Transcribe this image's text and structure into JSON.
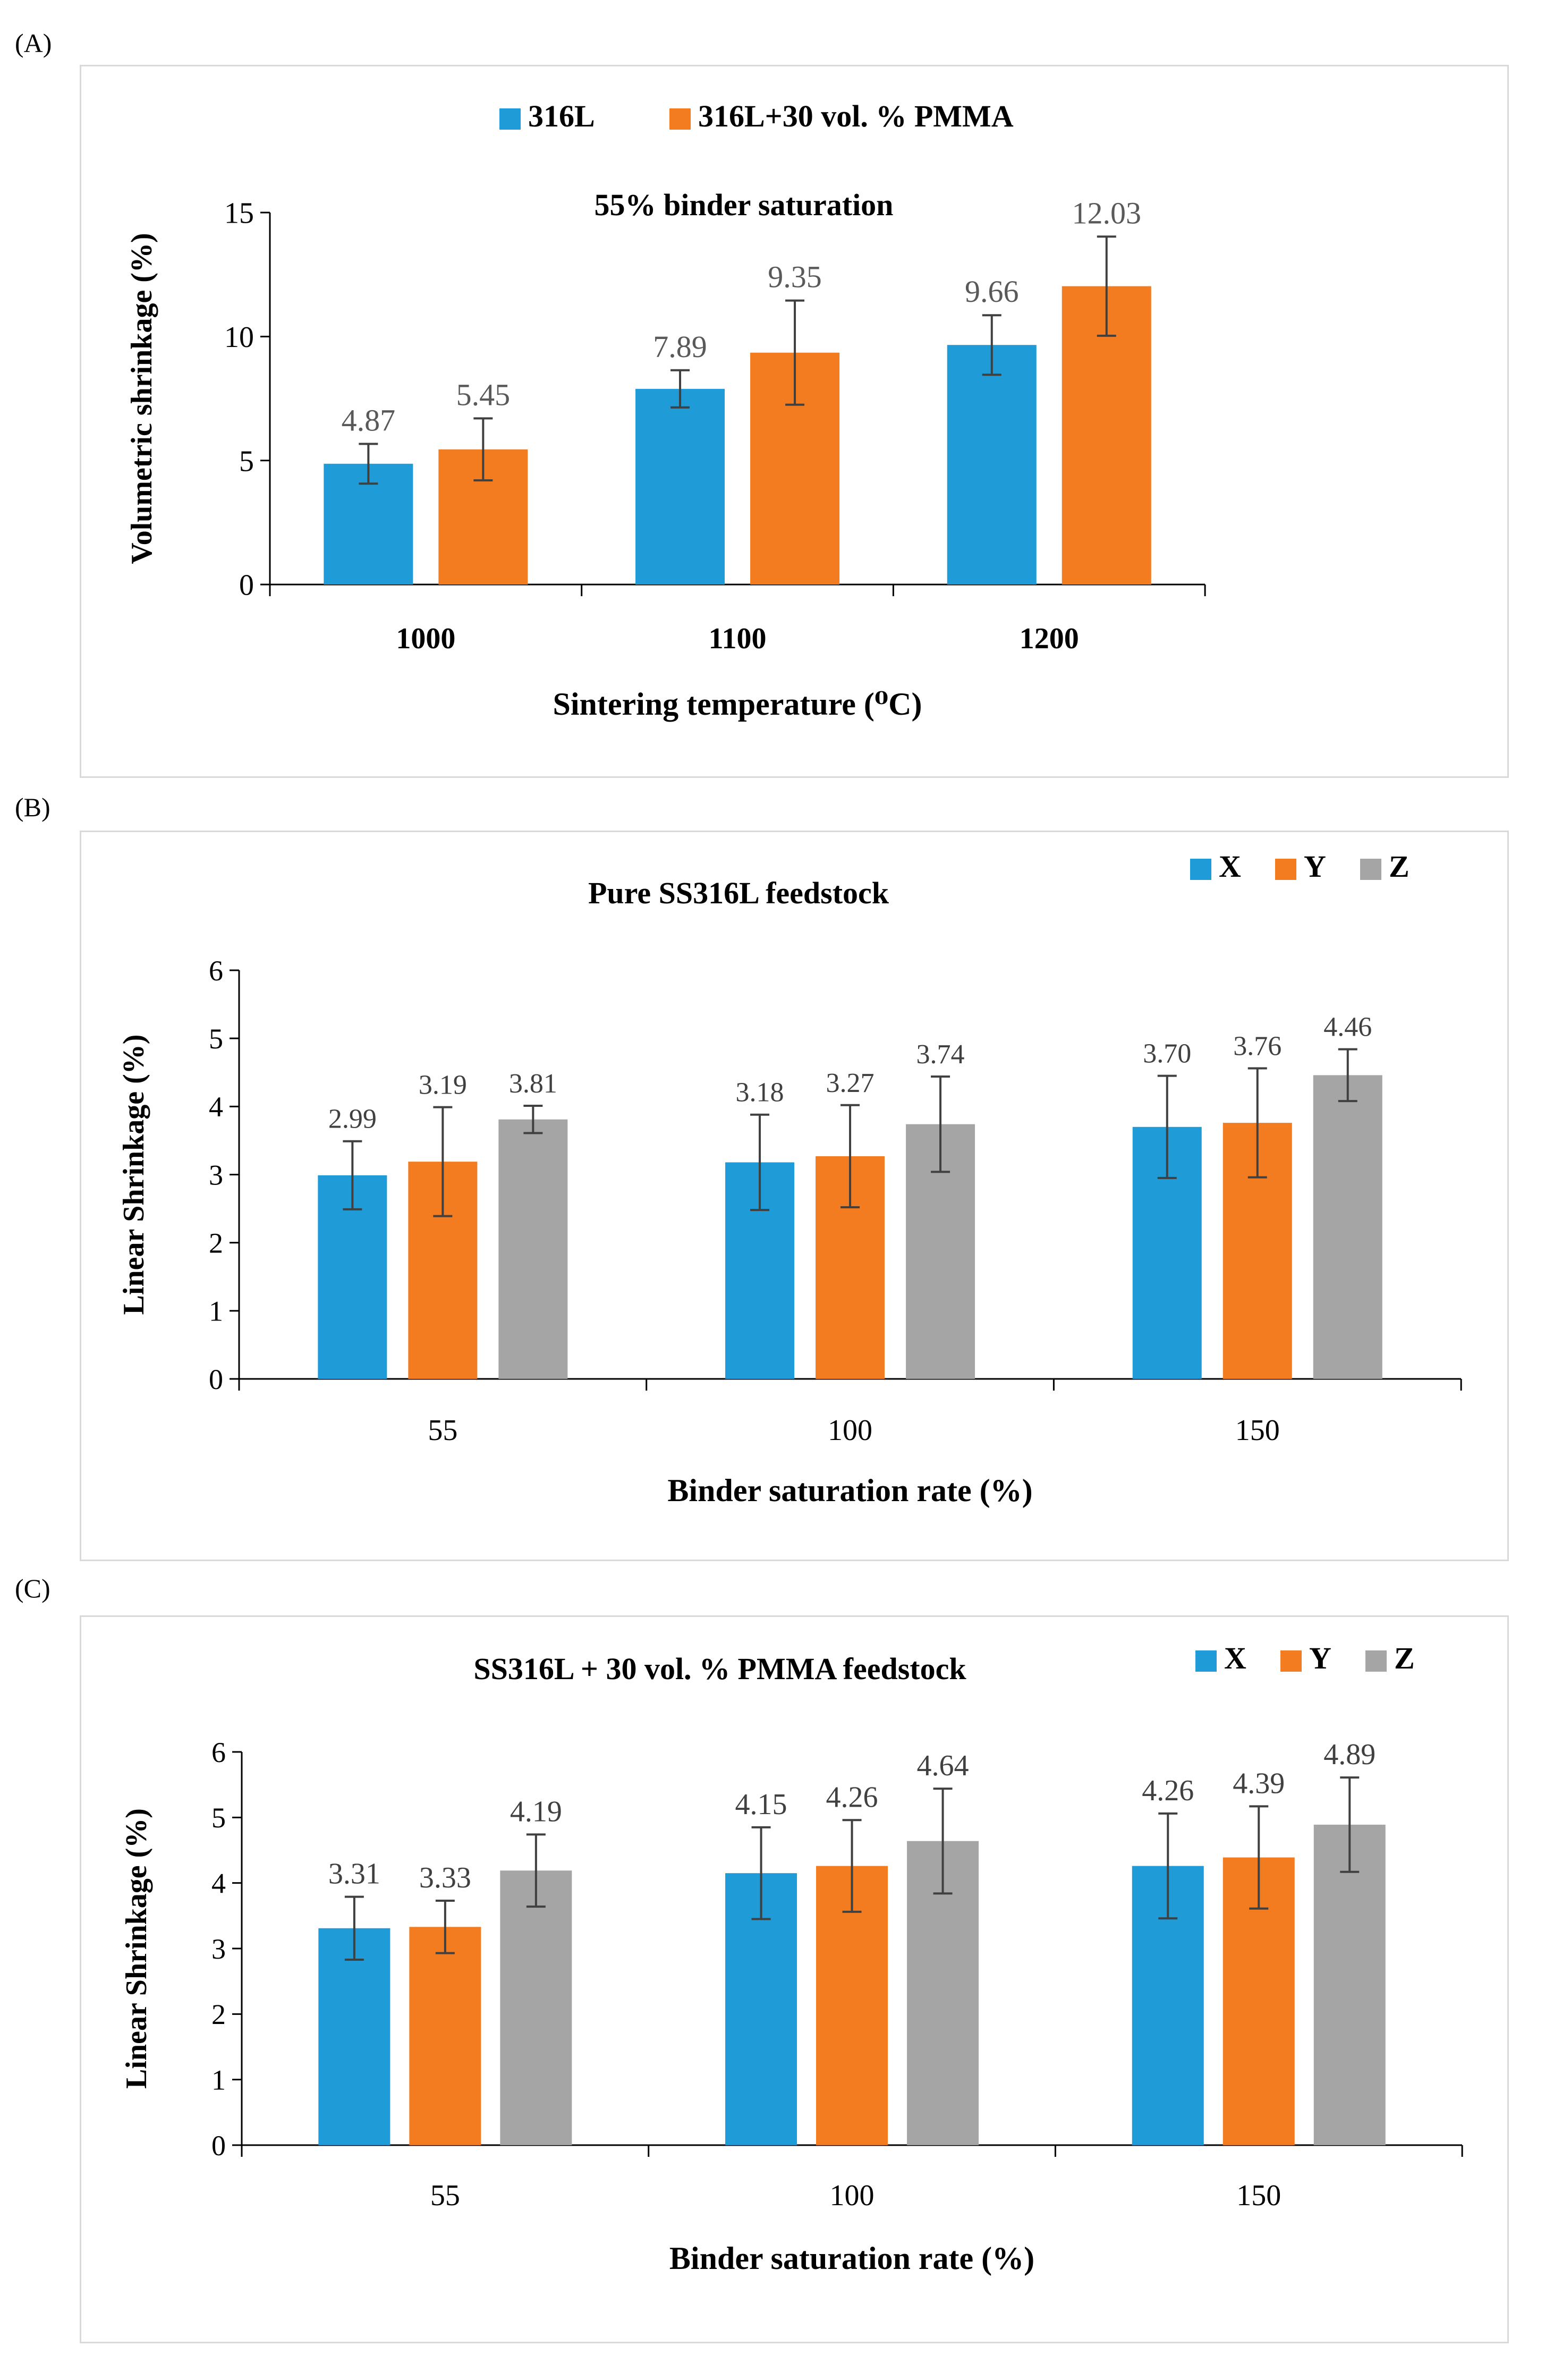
{
  "figure": {
    "panels": [
      {
        "label": "(A)",
        "chart_index": 0
      },
      {
        "label": "(B)",
        "chart_index": 1
      },
      {
        "label": "(C)",
        "chart_index": 2
      }
    ]
  },
  "chart_data": [
    {
      "type": "bar",
      "title": "55% binder saturation",
      "xlabel": "Sintering temperature (⁰C)",
      "ylabel": "Volumetric shrinkage (%)",
      "categories": [
        "1000",
        "1100",
        "1200"
      ],
      "ylim": [
        0,
        15
      ],
      "yticks": [
        0,
        5,
        10,
        15
      ],
      "legend_position": "top-center",
      "series": [
        {
          "name": "316L",
          "color": "#1f9bd7",
          "values": [
            4.87,
            7.89,
            9.66
          ],
          "errors": [
            0.8,
            0.75,
            1.2
          ],
          "labels": [
            "4.87",
            "7.89",
            "9.66"
          ]
        },
        {
          "name": "316L+30 vol. % PMMA",
          "color": "#f47c20",
          "values": [
            5.45,
            9.35,
            12.03
          ],
          "errors": [
            1.25,
            2.1,
            2.0
          ],
          "labels": [
            "5.45",
            "9.35",
            "12.03"
          ]
        }
      ]
    },
    {
      "type": "bar",
      "title": "Pure SS316L feedstock",
      "xlabel": "Binder saturation rate (%)",
      "ylabel": "Linear Shrinkage (%)",
      "categories": [
        "55",
        "100",
        "150"
      ],
      "ylim": [
        0,
        6
      ],
      "yticks": [
        0,
        1,
        2,
        3,
        4,
        5,
        6
      ],
      "legend_position": "top-right",
      "series": [
        {
          "name": "X",
          "color": "#1f9bd7",
          "values": [
            2.99,
            3.18,
            3.7
          ],
          "errors": [
            0.5,
            0.7,
            0.75
          ],
          "labels": [
            "2.99",
            "3.18",
            "3.70"
          ]
        },
        {
          "name": "Y",
          "color": "#f47c20",
          "values": [
            3.19,
            3.27,
            3.76
          ],
          "errors": [
            0.8,
            0.75,
            0.8
          ],
          "labels": [
            "3.19",
            "3.27",
            "3.76"
          ]
        },
        {
          "name": "Z",
          "color": "#a5a5a5",
          "values": [
            3.81,
            3.74,
            4.46
          ],
          "errors": [
            0.2,
            0.7,
            0.38
          ],
          "labels": [
            "3.81",
            "3.74",
            "4.46"
          ]
        }
      ]
    },
    {
      "type": "bar",
      "title": "SS316L + 30 vol. % PMMA feedstock",
      "xlabel": "Binder saturation rate (%)",
      "ylabel": "Linear Shrinkage (%)",
      "categories": [
        "55",
        "100",
        "150"
      ],
      "ylim": [
        0,
        6
      ],
      "yticks": [
        0,
        1,
        2,
        3,
        4,
        5,
        6
      ],
      "legend_position": "top-right",
      "series": [
        {
          "name": "X",
          "color": "#1f9bd7",
          "values": [
            3.31,
            4.15,
            4.26
          ],
          "errors": [
            0.48,
            0.7,
            0.8
          ],
          "labels": [
            "3.31",
            "4.15",
            "4.26"
          ]
        },
        {
          "name": "Y",
          "color": "#f47c20",
          "values": [
            3.33,
            4.26,
            4.39
          ],
          "errors": [
            0.4,
            0.7,
            0.78
          ],
          "labels": [
            "3.33",
            "4.26",
            "4.39"
          ]
        },
        {
          "name": "Z",
          "color": "#a5a5a5",
          "values": [
            4.19,
            4.64,
            4.89
          ],
          "errors": [
            0.55,
            0.8,
            0.72
          ],
          "labels": [
            "4.19",
            "4.64",
            "4.89"
          ]
        }
      ]
    }
  ]
}
